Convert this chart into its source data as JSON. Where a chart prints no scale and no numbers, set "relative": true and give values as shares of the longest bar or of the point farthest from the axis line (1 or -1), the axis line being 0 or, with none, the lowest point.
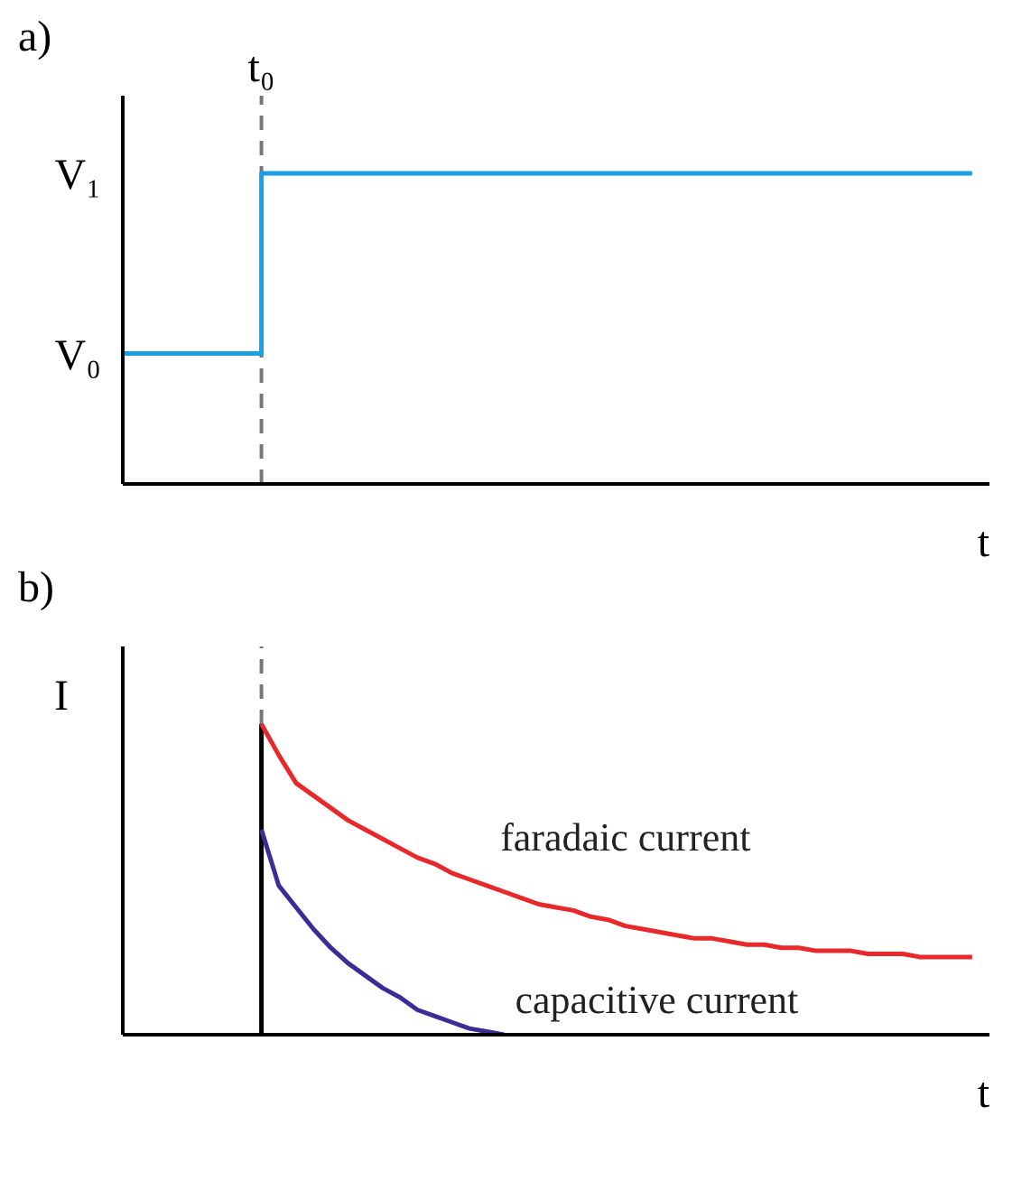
{
  "chart_data": [
    {
      "type": "step",
      "title": "a)",
      "xlabel": "t",
      "relative": true,
      "categories": [
        null,
        null,
        null,
        null,
        null,
        null,
        null,
        null,
        null,
        null,
        null,
        null,
        null,
        null,
        null,
        null,
        null,
        null,
        null,
        null,
        null,
        null,
        null,
        null,
        null,
        null,
        null,
        null,
        null,
        null,
        null,
        null,
        null,
        null,
        null,
        null,
        null,
        null,
        null,
        null,
        null,
        null,
        null,
        null,
        null,
        null,
        null,
        null,
        null,
        null,
        null
      ],
      "series": [
        {
          "color": "#1ba1e2",
          "values": [
            0.42,
            0.42,
            0.42,
            0.42,
            0.42,
            0.42,
            0.42,
            0.42,
            1,
            1,
            1,
            1,
            1,
            1,
            1,
            1,
            1,
            1,
            1,
            1,
            1,
            1,
            1,
            1,
            1,
            1,
            1,
            1,
            1,
            1,
            1,
            1,
            1,
            1,
            1,
            1,
            1,
            1,
            1,
            1,
            1,
            1,
            1,
            1,
            1,
            1,
            1,
            1,
            1,
            1,
            null
          ]
        }
      ],
      "annotations": [
        "V₁",
        "V₀"
      ],
      "ref_lines": [
        {
          "axis": "x",
          "label": "t₀",
          "color": "#777777",
          "line_style": "dashed"
        }
      ]
    },
    {
      "type": "line",
      "title": "b)",
      "xlabel": "t",
      "ylabel": "I",
      "relative": true,
      "categories": [
        null,
        null,
        null,
        null,
        null,
        null,
        null,
        null,
        null,
        null,
        null,
        null,
        null,
        null,
        null,
        null,
        null,
        null,
        null,
        null,
        null,
        null,
        null,
        null,
        null,
        null,
        null,
        null,
        null,
        null,
        null,
        null,
        null,
        null,
        null,
        null,
        null,
        null,
        null,
        null,
        null,
        null,
        null,
        null,
        null,
        null,
        null,
        null,
        null,
        null,
        null
      ],
      "series": [
        {
          "name": "faradaic current",
          "color": "#e8282b",
          "values": [
            null,
            null,
            null,
            null,
            null,
            null,
            null,
            null,
            1,
            0.9,
            0.81,
            0.77,
            0.73,
            0.69,
            0.66,
            0.63,
            0.6,
            0.57,
            0.55,
            0.52,
            0.5,
            0.48,
            0.46,
            0.44,
            0.42,
            0.41,
            0.4,
            0.38,
            0.37,
            0.35,
            0.34,
            0.33,
            0.32,
            0.31,
            0.31,
            0.3,
            0.29,
            0.29,
            0.28,
            0.28,
            0.27,
            0.27,
            0.27,
            0.26,
            0.26,
            0.26,
            0.25,
            0.25,
            0.25,
            0.25,
            null
          ]
        },
        {
          "name": "capacitive current",
          "color": "#3b2d96",
          "values": [
            null,
            null,
            null,
            null,
            null,
            null,
            null,
            null,
            0.66,
            0.48,
            0.41,
            0.34,
            0.28,
            0.23,
            0.19,
            0.15,
            0.12,
            0.08,
            0.06,
            0.04,
            0.02,
            0.01,
            0,
            null,
            null,
            null,
            null,
            null,
            null,
            null,
            null,
            null,
            null,
            null,
            null,
            null,
            null,
            null,
            null,
            null,
            null,
            null,
            null,
            null,
            null,
            null,
            null,
            null,
            null,
            null,
            null
          ]
        }
      ],
      "ref_lines": [
        {
          "axis": "x",
          "label": null,
          "color": "#777777",
          "line_style": "dashed"
        },
        {
          "axis": "x",
          "label": null,
          "color": "#000000",
          "line_style": "solid"
        }
      ]
    }
  ]
}
